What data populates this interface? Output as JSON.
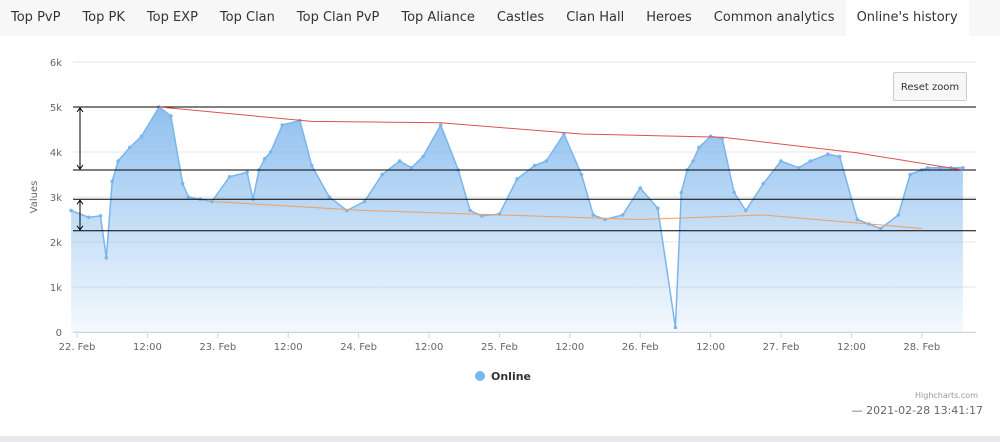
{
  "tabs": [
    {
      "label": "Top PvP",
      "active": false
    },
    {
      "label": "Top PK",
      "active": false
    },
    {
      "label": "Top EXP",
      "active": false
    },
    {
      "label": "Top Clan",
      "active": false
    },
    {
      "label": "Top Clan PvP",
      "active": false
    },
    {
      "label": "Top Aliance",
      "active": false
    },
    {
      "label": "Castles",
      "active": false
    },
    {
      "label": "Clan Hall",
      "active": false
    },
    {
      "label": "Heroes",
      "active": false
    },
    {
      "label": "Common analytics",
      "active": false
    },
    {
      "label": "Online's history",
      "active": true
    }
  ],
  "reset_zoom_label": "Reset zoom",
  "credits": "Highcharts.com",
  "timestamp": "— 2021-02-28 13:41:17",
  "colors": {
    "series": "#7cb5ec",
    "upper_trend": "#e05050",
    "lower_trend": "#f0a060",
    "annotation": "#000000"
  },
  "chart_data": {
    "type": "area",
    "title": "",
    "xlabel": "",
    "ylabel": "Values",
    "ylim": [
      0,
      6000
    ],
    "yticks": [
      {
        "value": 0,
        "label": "0"
      },
      {
        "value": 1000,
        "label": "1k"
      },
      {
        "value": 2000,
        "label": "2k"
      },
      {
        "value": 3000,
        "label": "3k"
      },
      {
        "value": 4000,
        "label": "4k"
      },
      {
        "value": 5000,
        "label": "5k"
      },
      {
        "value": 6000,
        "label": "6k"
      }
    ],
    "xlim": [
      "2021-02-22 00:00",
      "2021-02-28 18:00"
    ],
    "xticks": [
      {
        "value": "2021-02-22 00:00",
        "label": "22. Feb"
      },
      {
        "value": "2021-02-22 12:00",
        "label": "12:00"
      },
      {
        "value": "2021-02-23 00:00",
        "label": "23. Feb"
      },
      {
        "value": "2021-02-23 12:00",
        "label": "12:00"
      },
      {
        "value": "2021-02-24 00:00",
        "label": "24. Feb"
      },
      {
        "value": "2021-02-24 12:00",
        "label": "12:00"
      },
      {
        "value": "2021-02-25 00:00",
        "label": "25. Feb"
      },
      {
        "value": "2021-02-25 12:00",
        "label": "12:00"
      },
      {
        "value": "2021-02-26 00:00",
        "label": "26. Feb"
      },
      {
        "value": "2021-02-26 12:00",
        "label": "12:00"
      },
      {
        "value": "2021-02-27 00:00",
        "label": "27. Feb"
      },
      {
        "value": "2021-02-27 12:00",
        "label": "12:00"
      },
      {
        "value": "2021-02-28 00:00",
        "label": "28. Feb"
      }
    ],
    "grid": true,
    "legend_position": "bottom-center",
    "series": [
      {
        "name": "Online",
        "x": [
          "2021-02-21 23:00",
          "2021-02-22 02:00",
          "2021-02-22 04:00",
          "2021-02-22 05:00",
          "2021-02-22 06:00",
          "2021-02-22 07:00",
          "2021-02-22 09:00",
          "2021-02-22 11:00",
          "2021-02-22 14:00",
          "2021-02-22 16:00",
          "2021-02-22 18:00",
          "2021-02-22 19:00",
          "2021-02-22 21:00",
          "2021-02-22 23:00",
          "2021-02-23 02:00",
          "2021-02-23 05:00",
          "2021-02-23 06:00",
          "2021-02-23 07:00",
          "2021-02-23 08:00",
          "2021-02-23 09:00",
          "2021-02-23 11:00",
          "2021-02-23 14:00",
          "2021-02-23 16:00",
          "2021-02-23 19:00",
          "2021-02-23 22:00",
          "2021-02-24 01:00",
          "2021-02-24 04:00",
          "2021-02-24 07:00",
          "2021-02-24 09:00",
          "2021-02-24 11:00",
          "2021-02-24 14:00",
          "2021-02-24 17:00",
          "2021-02-24 19:00",
          "2021-02-24 21:00",
          "2021-02-25 00:00",
          "2021-02-25 03:00",
          "2021-02-25 06:00",
          "2021-02-25 08:00",
          "2021-02-25 11:00",
          "2021-02-25 14:00",
          "2021-02-25 16:00",
          "2021-02-25 18:00",
          "2021-02-25 21:00",
          "2021-02-26 00:00",
          "2021-02-26 03:00",
          "2021-02-26 06:00",
          "2021-02-26 07:00",
          "2021-02-26 08:00",
          "2021-02-26 09:00",
          "2021-02-26 10:00",
          "2021-02-26 12:00",
          "2021-02-26 14:00",
          "2021-02-26 16:00",
          "2021-02-26 18:00",
          "2021-02-26 21:00",
          "2021-02-27 00:00",
          "2021-02-27 03:00",
          "2021-02-27 05:00",
          "2021-02-27 08:00",
          "2021-02-27 10:00",
          "2021-02-27 13:00",
          "2021-02-27 15:00",
          "2021-02-27 17:00",
          "2021-02-27 20:00",
          "2021-02-27 22:00",
          "2021-02-28 00:00",
          "2021-02-28 01:00",
          "2021-02-28 03:00",
          "2021-02-28 05:00",
          "2021-02-28 07:00"
        ],
        "values": [
          2700,
          2550,
          2580,
          1650,
          3350,
          3800,
          4100,
          4350,
          5000,
          4800,
          3300,
          3000,
          2950,
          2900,
          3450,
          3550,
          2950,
          3600,
          3850,
          4000,
          4600,
          4700,
          3700,
          3000,
          2700,
          2900,
          3500,
          3800,
          3650,
          3900,
          4600,
          3600,
          2700,
          2580,
          2620,
          3400,
          3700,
          3800,
          4400,
          3500,
          2600,
          2500,
          2600,
          3200,
          2750,
          100,
          3100,
          3600,
          3800,
          4100,
          4350,
          4300,
          3100,
          2700,
          3300,
          3800,
          3650,
          3800,
          3950,
          3900,
          2500,
          2400,
          2300,
          2600,
          3500,
          3600,
          3650,
          3650,
          3650,
          3650
        ]
      }
    ],
    "trend_lines": [
      {
        "name": "upper",
        "points": [
          {
            "x": "2021-02-22 14:00",
            "y": 5000
          },
          {
            "x": "2021-02-23 16:00",
            "y": 4680
          },
          {
            "x": "2021-02-24 14:00",
            "y": 4650
          },
          {
            "x": "2021-02-25 14:00",
            "y": 4400
          },
          {
            "x": "2021-02-26 14:00",
            "y": 4330
          },
          {
            "x": "2021-02-27 13:00",
            "y": 3980
          },
          {
            "x": "2021-02-28 07:00",
            "y": 3600
          }
        ]
      },
      {
        "name": "lower",
        "points": [
          {
            "x": "2021-02-22 23:00",
            "y": 2900
          },
          {
            "x": "2021-02-24 01:00",
            "y": 2700
          },
          {
            "x": "2021-02-26 00:00",
            "y": 2500
          },
          {
            "x": "2021-02-26 21:00",
            "y": 2600
          },
          {
            "x": "2021-02-28 00:00",
            "y": 2300
          }
        ]
      }
    ],
    "horizontal_lines": [
      5000,
      3600,
      2950,
      2250
    ],
    "range_arrows": [
      [
        5000,
        3600
      ],
      [
        2950,
        2250
      ]
    ]
  }
}
